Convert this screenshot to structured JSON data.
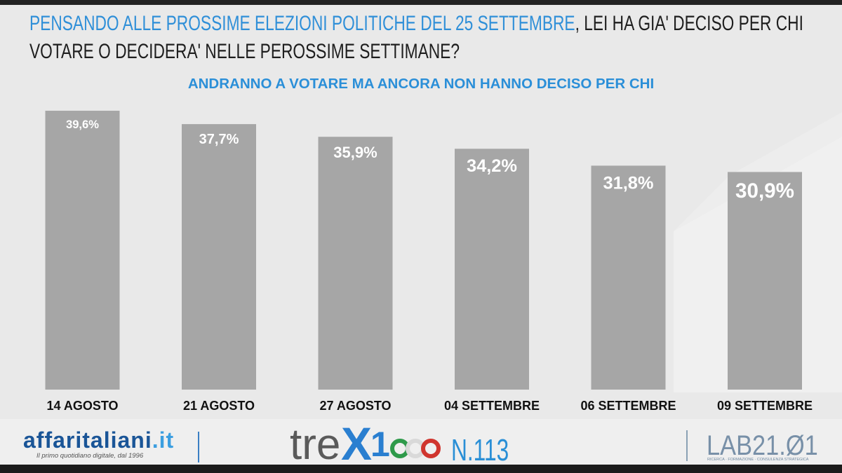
{
  "title": {
    "highlight": "PENSANDO ALLE PROSSIME ELEZIONI POLITICHE DEL 25 SETTEMBRE",
    "rest_line1": ", LEI HA GIA' DECISO PER CHI",
    "line2": "VOTARE O DECIDERA' NELLE PEROSSIME SETTIMANE?"
  },
  "chart_data": {
    "type": "bar",
    "title": "ANDRANNO A VOTARE MA ANCORA NON HANNO DECISO PER CHI",
    "categories": [
      "14 AGOSTO",
      "21 AGOSTO",
      "27 AGOSTO",
      "04 SETTEMBRE",
      "06 SETTEMBRE",
      "09 SETTEMBRE"
    ],
    "values": [
      39.6,
      37.7,
      35.9,
      34.2,
      31.8,
      30.9
    ],
    "value_labels": [
      "39,6%",
      "37,7%",
      "35,9%",
      "34,2%",
      "31,8%",
      "30,9%"
    ],
    "grid": false,
    "bar_color": "#a6a6a6",
    "label_color": "#ffffff",
    "category_color": "#111111"
  },
  "colors": {
    "accent_blue": "#2f8fd8",
    "text_dark": "#1e1e1e",
    "background": "#e9e9e9"
  },
  "footer": {
    "publisher": {
      "name": "affaritaliani",
      "tld": ".it",
      "tagline": "Il primo quotidiano digitale, dal 1996"
    },
    "series": {
      "tre": "tre",
      "x": "X",
      "one": "1",
      "zeros": "000",
      "issue": "N.113"
    },
    "lab": {
      "name": "LAB21.Ø1",
      "tagline": "RICERCA · FORMAZIONE · CONSULENZA STRATEGICA"
    }
  }
}
